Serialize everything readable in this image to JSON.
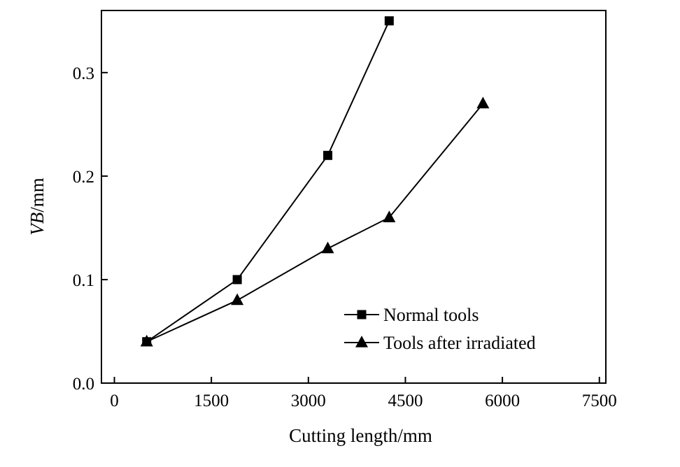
{
  "chart_data": {
    "type": "line",
    "xlabel": "Cutting length/mm",
    "ylabel_italic": "VB",
    "ylabel_unit": "/mm",
    "xlim": [
      -200,
      7600
    ],
    "ylim": [
      0,
      0.36
    ],
    "x_ticks": [
      0,
      1500,
      3000,
      4500,
      6000,
      7500
    ],
    "x_tick_labels": [
      "0",
      "1500",
      "3000",
      "4500",
      "6000",
      "7500"
    ],
    "y_ticks": [
      0.0,
      0.1,
      0.2,
      0.3
    ],
    "y_tick_labels": [
      "0.0",
      "0.1",
      "0.2",
      "0.3"
    ],
    "grid": false,
    "legend_position": "bottom-right",
    "series": [
      {
        "name": "Normal tools",
        "marker": "square",
        "color": "#000000",
        "x": [
          500,
          1900,
          3300,
          4250
        ],
        "y": [
          0.04,
          0.1,
          0.22,
          0.35
        ]
      },
      {
        "name": "Tools after irradiated",
        "marker": "triangle",
        "color": "#000000",
        "x": [
          500,
          1900,
          3300,
          4250,
          5700
        ],
        "y": [
          0.04,
          0.08,
          0.13,
          0.16,
          0.27
        ]
      }
    ]
  }
}
